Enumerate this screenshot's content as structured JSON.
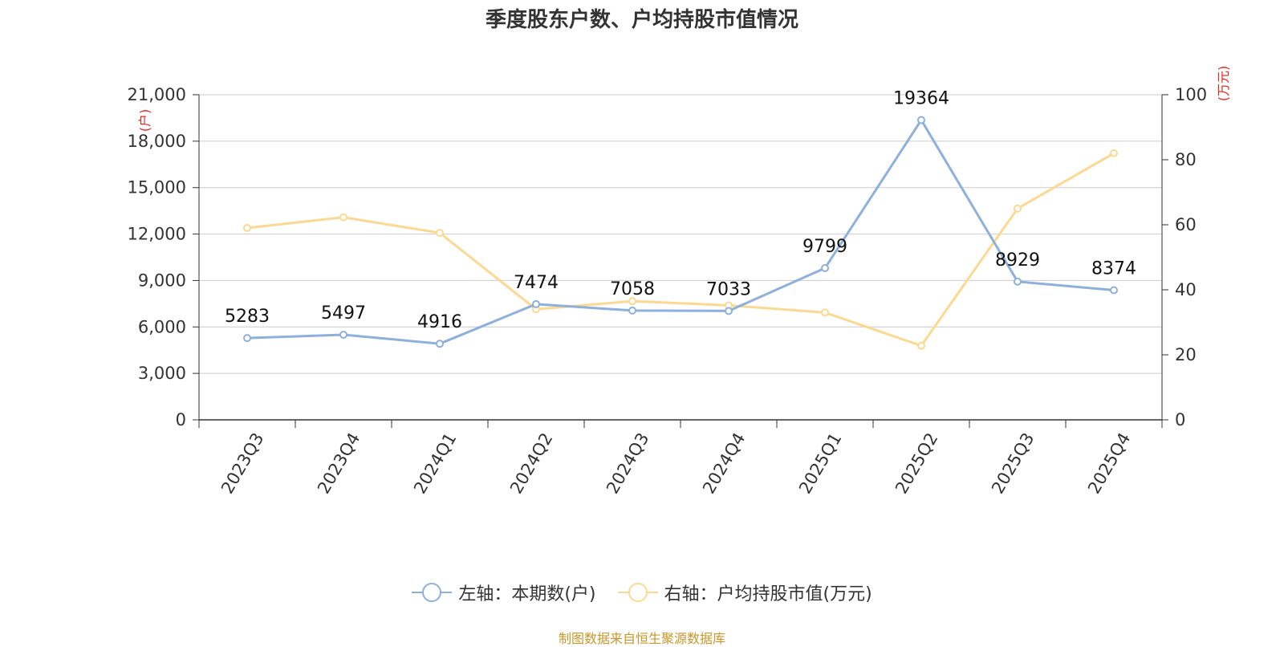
{
  "title": "季度股东户数、户均持股市值情况",
  "footer": "制图数据来自恒生聚源数据库",
  "colors": {
    "series_left": "#8EB0DC",
    "series_right": "#FDD891",
    "unit_label": "#E8251F",
    "footer": "#C8962A",
    "grid": "#CCCCCC",
    "axis": "#333333"
  },
  "chart_data": {
    "type": "line",
    "categories": [
      "2023Q3",
      "2023Q4",
      "2024Q1",
      "2024Q2",
      "2024Q3",
      "2024Q4",
      "2025Q1",
      "2025Q2",
      "2025Q3",
      "2025Q4"
    ],
    "series": [
      {
        "name": "左轴：本期数(户)",
        "axis": "left",
        "values": [
          5283,
          5497,
          4916,
          7474,
          7058,
          7033,
          9799,
          19364,
          8929,
          8374
        ],
        "data_labels": [
          "5283",
          "5497",
          "4916",
          "7474",
          "7058",
          "7033",
          "9799",
          "19364",
          "8929",
          "8374"
        ]
      },
      {
        "name": "右轴：户均持股市值(万元)",
        "axis": "right",
        "values": [
          59,
          62.3,
          57.5,
          34,
          36.5,
          35.2,
          33,
          22.8,
          65,
          82
        ]
      }
    ],
    "y_left": {
      "unit_label": "(户)",
      "ylim": [
        0,
        21000
      ],
      "ticks": [
        0,
        3000,
        6000,
        9000,
        12000,
        15000,
        18000,
        21000
      ],
      "tick_labels": [
        "0",
        "3,000",
        "6,000",
        "9,000",
        "12,000",
        "15,000",
        "18,000",
        "21,000"
      ]
    },
    "y_right": {
      "unit_label": "(万元)",
      "ylim": [
        0,
        100
      ],
      "ticks": [
        0,
        20,
        40,
        60,
        80,
        100
      ],
      "tick_labels": [
        "0",
        "20",
        "40",
        "60",
        "80",
        "100"
      ]
    },
    "grid": true,
    "legend_position": "bottom-center"
  }
}
